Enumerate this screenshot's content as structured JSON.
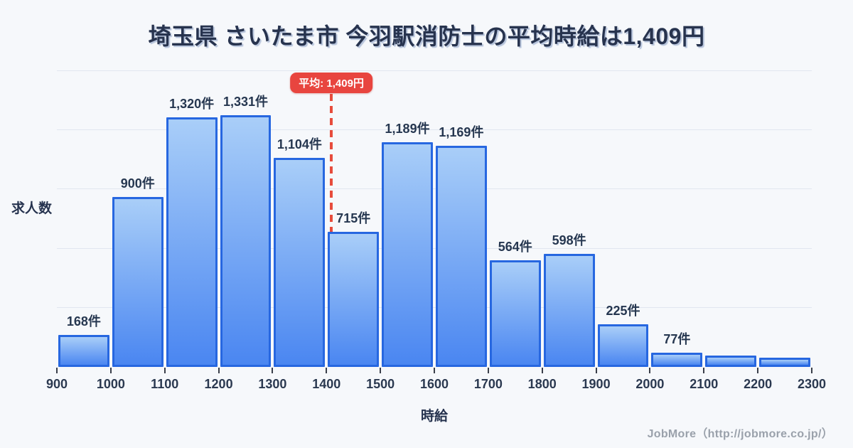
{
  "title": "埼玉県 さいたま市 今羽駅消防士の平均時給は1,409円",
  "footer": "JobMore（http://jobmore.co.jp/）",
  "colors": {
    "background": "#f6f8fb",
    "title_text": "#27334e",
    "bar_gradient_top": "#a9cef8",
    "bar_gradient_bottom": "#4a86f1",
    "bar_border": "#2767e0",
    "average_accent": "#e8453f",
    "gridline": "#e1e6ef",
    "label_text": "#263750",
    "footer_text": "#9aa1ab"
  },
  "chart_data": {
    "type": "bar",
    "title": "埼玉県 さいたま市 今羽駅消防士の平均時給は1,409円",
    "xlabel": "時給",
    "ylabel": "求人数",
    "x_range": [
      900,
      2300
    ],
    "bin_width": 100,
    "x_ticks": [
      900,
      1000,
      1100,
      1200,
      1300,
      1400,
      1500,
      1600,
      1700,
      1800,
      1900,
      2000,
      2100,
      2200,
      2300
    ],
    "grid": "horizontal-faint-unlabeled-y",
    "legend": "none",
    "bins": [
      {
        "range": [
          900,
          1000
        ],
        "count": 168,
        "label": "168件"
      },
      {
        "range": [
          1000,
          1100
        ],
        "count": 900,
        "label": "900件"
      },
      {
        "range": [
          1100,
          1200
        ],
        "count": 1320,
        "label": "1,320件"
      },
      {
        "range": [
          1200,
          1300
        ],
        "count": 1331,
        "label": "1,331件"
      },
      {
        "range": [
          1300,
          1400
        ],
        "count": 1104,
        "label": "1,104件"
      },
      {
        "range": [
          1400,
          1500
        ],
        "count": 715,
        "label": "715件"
      },
      {
        "range": [
          1500,
          1600
        ],
        "count": 1189,
        "label": "1,189件"
      },
      {
        "range": [
          1600,
          1700
        ],
        "count": 1169,
        "label": "1,169件"
      },
      {
        "range": [
          1700,
          1800
        ],
        "count": 564,
        "label": "564件"
      },
      {
        "range": [
          1800,
          1900
        ],
        "count": 598,
        "label": "598件"
      },
      {
        "range": [
          1900,
          2000
        ],
        "count": 225,
        "label": "225件"
      },
      {
        "range": [
          2000,
          2100
        ],
        "count": 77,
        "label": "77件"
      },
      {
        "range": [
          2100,
          2200
        ],
        "count": 60,
        "label": ""
      },
      {
        "range": [
          2200,
          2300
        ],
        "count": 48,
        "label": ""
      }
    ],
    "average": {
      "value": 1409,
      "label": "平均: 1,409円"
    }
  }
}
